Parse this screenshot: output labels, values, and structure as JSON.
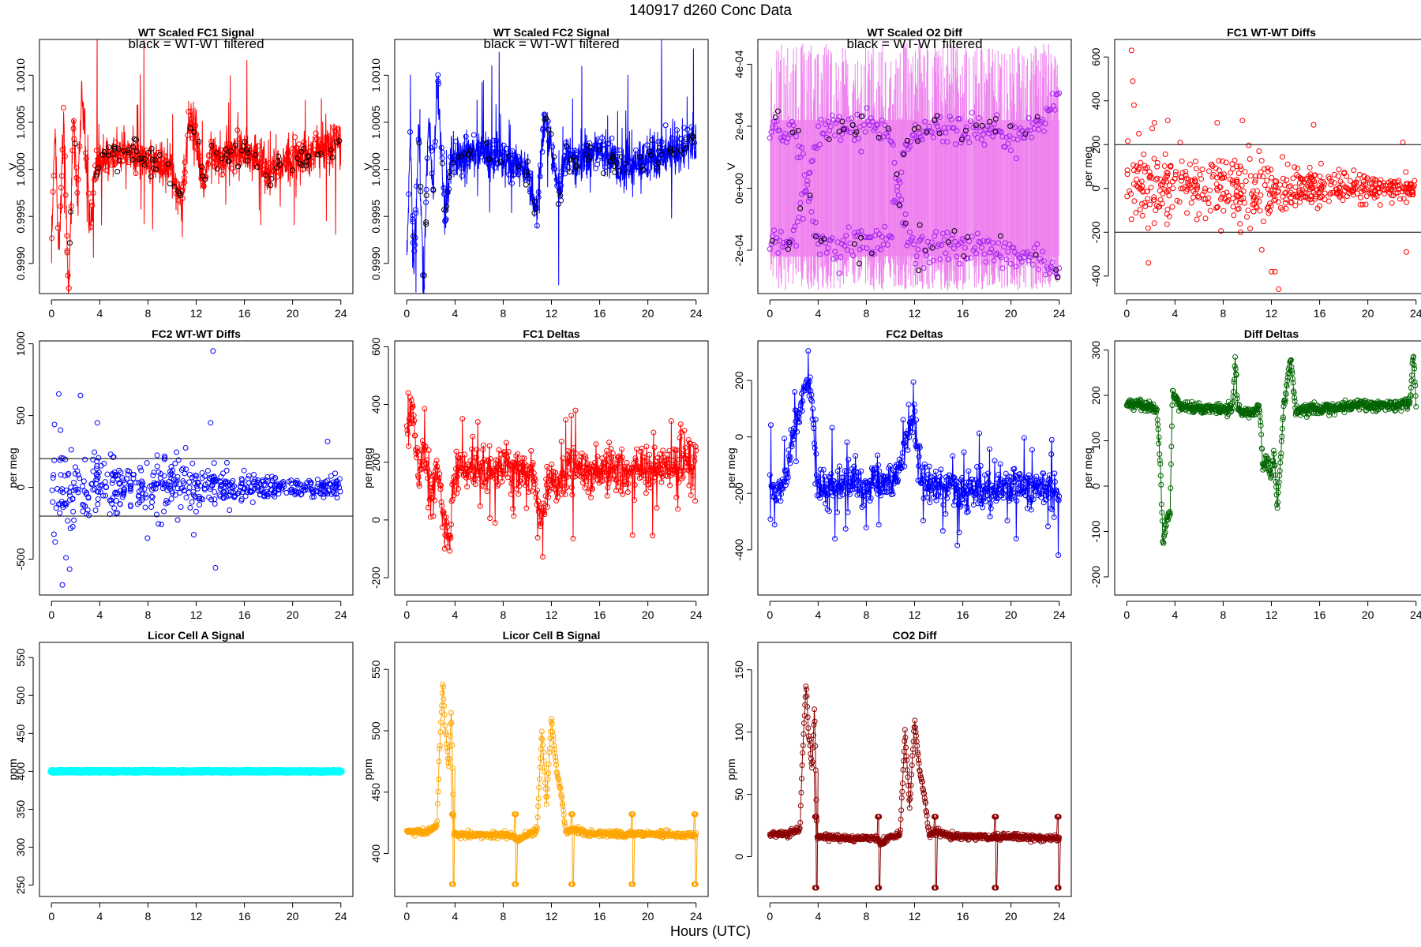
{
  "figure": {
    "title": "140917   d260   Conc Data",
    "xlabel": "Hours (UTC)",
    "annotation": "black = WT-WT filtered"
  },
  "colors": {
    "axis": "#000000",
    "black": "#000000",
    "red": "#ff0000",
    "blue": "#0000ff",
    "violet": "#ee82ee",
    "purple": "#a020f0",
    "green": "#006400",
    "cyan": "#00ffff",
    "orange": "#ffa500",
    "darkred": "#8b0000"
  },
  "chart_data": [
    {
      "id": "fc1-signal",
      "type": "line",
      "title": "WT Scaled FC1 Signal",
      "ylabel": "V",
      "ylim": [
        0.99868,
        1.00138
      ],
      "xlim": [
        -1,
        25
      ],
      "yticks": [
        0.999,
        0.9995,
        1.0,
        1.0005,
        1.001
      ],
      "ytick_labels": [
        "0.9990",
        "0.9995",
        "1.0000",
        "1.0005",
        "1.0010"
      ],
      "xticks": [
        0,
        4,
        8,
        12,
        16,
        20,
        24
      ],
      "note": true,
      "baseline": 1.0001,
      "noise": 0.00012,
      "line_color": "red",
      "point_color": "red",
      "filtered_color": "black",
      "series": [
        {
          "name": "WT-WT",
          "x": [
            0.0,
            0.3,
            0.6,
            1.0,
            1.4,
            1.8,
            2.2,
            2.5,
            2.8,
            3.2,
            3.6,
            4.0,
            6.0,
            8.0,
            10.0,
            10.8,
            11.4,
            12.0,
            12.6,
            13.2,
            14.0,
            16.0,
            18.0,
            20.0,
            22.0,
            24.0
          ],
          "y": [
            0.9992,
            1.0004,
            0.999,
            1.0006,
            0.9986,
            1.0005,
            0.9997,
            1.0009,
            1.0003,
            0.9993,
            1.0,
            1.0001,
            1.0002,
            1.0001,
            1.0,
            0.9996,
            1.0005,
            1.0004,
            0.9998,
            1.0002,
            1.0001,
            1.0002,
            1.0,
            1.0001,
            1.0002,
            1.0003
          ]
        }
      ]
    },
    {
      "id": "fc2-signal",
      "type": "line",
      "title": "WT Scaled FC2 Signal",
      "ylabel": "V",
      "ylim": [
        0.99868,
        1.00138
      ],
      "xlim": [
        -1,
        25
      ],
      "yticks": [
        0.999,
        0.9995,
        1.0,
        1.0005,
        1.001
      ],
      "ytick_labels": [
        "0.9990",
        "0.9995",
        "1.0000",
        "1.0005",
        "1.0010"
      ],
      "xticks": [
        0,
        4,
        8,
        12,
        16,
        20,
        24
      ],
      "note": true,
      "baseline": 1.0001,
      "noise": 0.00012,
      "line_color": "blue",
      "point_color": "blue",
      "filtered_color": "black",
      "series": [
        {
          "name": "WT-WT",
          "x": [
            0.0,
            0.3,
            0.6,
            1.0,
            1.4,
            1.8,
            2.2,
            2.5,
            2.8,
            3.2,
            3.6,
            4.0,
            6.0,
            8.0,
            10.0,
            10.8,
            11.4,
            12.0,
            12.6,
            13.2,
            14.0,
            16.0,
            18.0,
            20.0,
            22.0,
            24.0
          ],
          "y": [
            0.9991,
            1.0004,
            0.9989,
            1.0005,
            0.9986,
            1.0006,
            0.9998,
            1.001,
            1.0004,
            0.9994,
            1.0001,
            1.0001,
            1.0002,
            1.0001,
            1.0,
            0.9995,
            1.0005,
            1.0003,
            0.9997,
            1.0002,
            1.0001,
            1.0002,
            1.0,
            1.0001,
            1.0002,
            1.0003
          ]
        }
      ]
    },
    {
      "id": "o2-diff",
      "type": "line",
      "title": "WT Scaled O2 Diff",
      "ylabel": "V",
      "ylim": [
        -0.00034,
        0.00048
      ],
      "xlim": [
        -1,
        25
      ],
      "yticks": [
        -0.0002,
        0.0,
        0.0002,
        0.0004
      ],
      "ytick_labels": [
        "-2e-04",
        "0e+00",
        "2e-04",
        "4e-04"
      ],
      "xticks": [
        0,
        4,
        8,
        12,
        16,
        20,
        24
      ],
      "note": true,
      "line_color": "violet",
      "point_color": "purple",
      "filtered_color": "black",
      "band": [
        -0.00022,
        0.00022
      ],
      "series": [
        {
          "name": "upper",
          "x": [
            0,
            2,
            4,
            6,
            8,
            10,
            11,
            12,
            13,
            14,
            16,
            18,
            20,
            22,
            24
          ],
          "y": [
            0.00018,
            0.00019,
            -0.00017,
            -0.00019,
            -0.00018,
            -0.00017,
            0.0001,
            0.00019,
            0.00018,
            0.0002,
            0.00019,
            0.00018,
            0.00017,
            0.0002,
            0.0003
          ]
        },
        {
          "name": "lower",
          "x": [
            0,
            2,
            4,
            6,
            8,
            10,
            11,
            12,
            13,
            14,
            16,
            18,
            20,
            22,
            24
          ],
          "y": [
            -0.00018,
            -0.00017,
            0.00018,
            0.00019,
            0.0002,
            0.00019,
            -0.0001,
            -0.00019,
            -0.0002,
            -0.00019,
            -0.00018,
            -0.0002,
            -0.00021,
            -0.0002,
            -0.00028
          ]
        }
      ]
    },
    {
      "id": "fc1-diffs",
      "type": "scatter",
      "title": "FC1 WT-WT Diffs",
      "ylabel": "per meg",
      "ylim": [
        -480,
        680
      ],
      "xlim": [
        -1,
        25
      ],
      "yticks": [
        -400,
        -200,
        0,
        200,
        400,
        600
      ],
      "ytick_labels": [
        "-400",
        "-200",
        "0",
        "200",
        "400",
        "600"
      ],
      "xticks": [
        0,
        4,
        8,
        12,
        16,
        20,
        24
      ],
      "hlines": [
        200,
        -200
      ],
      "point_color": "red",
      "n": 560,
      "spread": [
        [
          0,
          180
        ],
        [
          4,
          110
        ],
        [
          10,
          130
        ],
        [
          14,
          90
        ],
        [
          18,
          60
        ],
        [
          24,
          45
        ]
      ],
      "series": [
        {
          "name": "outliers",
          "x": [
            0.4,
            0.5,
            0.6,
            1.0,
            1.8,
            2.3,
            3.4,
            7.5,
            9.6,
            11.2,
            12.0,
            12.3,
            12.6,
            15.5,
            22.9,
            23.2
          ],
          "y": [
            630,
            490,
            380,
            250,
            -340,
            300,
            310,
            300,
            310,
            -280,
            -380,
            -380,
            -460,
            290,
            210,
            -290
          ]
        }
      ]
    },
    {
      "id": "fc2-diffs",
      "type": "scatter",
      "title": "FC2 WT-WT Diffs",
      "ylabel": "per meg",
      "ylim": [
        -750,
        1020
      ],
      "xlim": [
        -1,
        25
      ],
      "yticks": [
        -500,
        0,
        500,
        1000
      ],
      "ytick_labels": [
        "-500",
        "0",
        "500",
        "1000"
      ],
      "xticks": [
        0,
        4,
        8,
        12,
        16,
        20,
        24
      ],
      "hlines": [
        200,
        -200
      ],
      "point_color": "blue",
      "n": 560,
      "spread": [
        [
          0,
          280
        ],
        [
          4,
          170
        ],
        [
          10,
          190
        ],
        [
          14,
          110
        ],
        [
          18,
          70
        ],
        [
          24,
          60
        ]
      ],
      "series": [
        {
          "name": "outliers",
          "x": [
            0.3,
            0.6,
            0.9,
            1.2,
            1.5,
            2.4,
            3.8,
            11.8,
            13.2,
            13.4,
            13.6,
            22.9
          ],
          "y": [
            -380,
            650,
            -680,
            -490,
            -570,
            640,
            450,
            -330,
            450,
            950,
            -560,
            320
          ]
        }
      ]
    },
    {
      "id": "fc1-deltas",
      "type": "line",
      "title": "FC1 Deltas",
      "ylabel": "per meg",
      "ylim": [
        -260,
        620
      ],
      "xlim": [
        -1,
        25
      ],
      "yticks": [
        -200,
        0,
        200,
        400,
        600
      ],
      "ytick_labels": [
        "-200",
        "0",
        "200",
        "400",
        "600"
      ],
      "xticks": [
        0,
        4,
        8,
        12,
        16,
        20,
        24
      ],
      "line_color": "red",
      "point_color": "red",
      "n": 620,
      "noise": 35,
      "spikes": 0.09,
      "spike_size": 130,
      "series": [
        {
          "name": "FC1",
          "x": [
            0.0,
            0.5,
            1.0,
            1.5,
            2.0,
            2.5,
            3.0,
            3.3,
            3.6,
            3.9,
            4.3,
            6.0,
            8.0,
            10.0,
            10.5,
            11.0,
            11.5,
            12.0,
            12.5,
            13.0,
            14.0,
            16.0,
            18.0,
            20.0,
            22.0,
            24.0
          ],
          "y": [
            300,
            380,
            160,
            250,
            90,
            200,
            20,
            -60,
            -90,
            160,
            180,
            180,
            175,
            170,
            140,
            10,
            40,
            150,
            100,
            160,
            175,
            170,
            165,
            175,
            185,
            200
          ]
        }
      ]
    },
    {
      "id": "fc2-deltas",
      "type": "line",
      "title": "FC2 Deltas",
      "ylabel": "per meg",
      "ylim": [
        -560,
        340
      ],
      "xlim": [
        -1,
        25
      ],
      "yticks": [
        -400,
        -200,
        0,
        200
      ],
      "ytick_labels": [
        "-400",
        "-200",
        "0",
        "200"
      ],
      "xticks": [
        0,
        4,
        8,
        12,
        16,
        20,
        24
      ],
      "line_color": "blue",
      "point_color": "blue",
      "n": 620,
      "noise": 30,
      "spikes": 0.09,
      "spike_size": 120,
      "series": [
        {
          "name": "FC2",
          "x": [
            0.0,
            0.5,
            1.0,
            1.5,
            2.0,
            2.5,
            3.0,
            3.5,
            3.9,
            4.3,
            6.0,
            8.0,
            10.0,
            10.5,
            11.0,
            11.5,
            12.0,
            12.5,
            13.0,
            14.0,
            16.0,
            18.0,
            20.0,
            22.0,
            24.0
          ],
          "y": [
            -150,
            -230,
            -180,
            -120,
            20,
            110,
            200,
            120,
            -150,
            -180,
            -170,
            -175,
            -160,
            -150,
            -60,
            30,
            80,
            -140,
            -170,
            -180,
            -185,
            -190,
            -180,
            -185,
            -200
          ]
        }
      ]
    },
    {
      "id": "diff-deltas",
      "type": "line",
      "title": "Diff Deltas",
      "ylabel": "per meg",
      "ylim": [
        -240,
        320
      ],
      "xlim": [
        -1,
        25
      ],
      "yticks": [
        -200,
        -100,
        0,
        100,
        200,
        300
      ],
      "ytick_labels": [
        "-200",
        "-100",
        "0",
        "100",
        "200",
        "300"
      ],
      "xticks": [
        0,
        4,
        8,
        12,
        16,
        20,
        24
      ],
      "line_color": "green",
      "point_color": "green",
      "n": 700,
      "noise": 6,
      "spikes": 0.0,
      "spike_size": 0,
      "series": [
        {
          "name": "diff",
          "x": [
            0.0,
            1.0,
            2.0,
            2.5,
            2.8,
            3.0,
            3.3,
            3.6,
            3.8,
            4.0,
            4.5,
            6.0,
            8.0,
            8.8,
            9.0,
            9.2,
            9.5,
            10.5,
            11.0,
            11.3,
            11.6,
            12.0,
            12.2,
            12.5,
            13.0,
            13.6,
            14.0,
            16.0,
            18.0,
            20.0,
            22.0,
            23.5,
            23.8,
            24.0
          ],
          "y": [
            182,
            178,
            175,
            170,
            40,
            -120,
            -80,
            -60,
            210,
            195,
            175,
            172,
            170,
            175,
            280,
            175,
            165,
            160,
            175,
            40,
            60,
            20,
            80,
            -50,
            165,
            285,
            165,
            170,
            175,
            180,
            178,
            185,
            300,
            170
          ]
        }
      ]
    },
    {
      "id": "licor-a",
      "type": "line",
      "title": "Licor Cell A Signal",
      "ylabel": "ppm",
      "ylim": [
        235,
        570
      ],
      "xlim": [
        -1,
        25
      ],
      "yticks": [
        250,
        300,
        350,
        400,
        450,
        500,
        550
      ],
      "ytick_labels": [
        "250",
        "300",
        "350",
        "400",
        "450",
        "500",
        "550"
      ],
      "xticks": [
        0,
        4,
        8,
        12,
        16,
        20,
        24
      ],
      "line_color": "cyan",
      "point_color": "cyan",
      "thick": true,
      "n": 600,
      "noise": 0.3,
      "spikes": 0,
      "spike_size": 0,
      "series": [
        {
          "name": "cellA",
          "x": [
            0,
            24
          ],
          "y": [
            400,
            400
          ]
        }
      ]
    },
    {
      "id": "licor-b",
      "type": "line",
      "title": "Licor Cell B Signal",
      "ylabel": "ppm",
      "ylim": [
        365,
        572
      ],
      "xlim": [
        -1,
        25
      ],
      "yticks": [
        400,
        450,
        500,
        550
      ],
      "ytick_labels": [
        "400",
        "450",
        "500",
        "550"
      ],
      "xticks": [
        0,
        4,
        8,
        12,
        16,
        20,
        24
      ],
      "line_color": "orange",
      "point_color": "orange",
      "n": 620,
      "noise": 1.2,
      "spikes": 0,
      "spike_size": 0,
      "series": [
        {
          "name": "cellB",
          "x": [
            0.0,
            1.5,
            2.5,
            2.7,
            3.0,
            3.2,
            3.5,
            3.7,
            3.9,
            4.2,
            6.0,
            8.0,
            8.8,
            9.2,
            10.0,
            10.8,
            11.2,
            11.6,
            12.0,
            12.4,
            12.8,
            13.2,
            14.0,
            15.0,
            18.0,
            20.0,
            22.0,
            24.0
          ],
          "y": [
            418,
            418,
            422,
            480,
            540,
            500,
            470,
            520,
            416,
            416,
            415,
            415,
            415,
            410,
            416,
            418,
            500,
            440,
            510,
            470,
            450,
            418,
            420,
            416,
            416,
            416,
            415,
            415
          ]
        }
      ],
      "events": {
        "x": [
          3.8,
          9.0,
          13.7,
          18.7,
          23.9
        ],
        "high": 432,
        "low": 375
      }
    },
    {
      "id": "co2-diff",
      "type": "line",
      "title": "CO2 Diff",
      "ylabel": "ppm",
      "ylim": [
        -32,
        172
      ],
      "xlim": [
        -1,
        25
      ],
      "yticks": [
        0,
        50,
        100,
        150
      ],
      "ytick_labels": [
        "0",
        "50",
        "100",
        "150"
      ],
      "xticks": [
        0,
        4,
        8,
        12,
        16,
        20,
        24
      ],
      "line_color": "darkred",
      "point_color": "darkred",
      "n": 620,
      "noise": 1.2,
      "spikes": 0,
      "spike_size": 0,
      "series": [
        {
          "name": "co2",
          "x": [
            0.0,
            1.5,
            2.5,
            2.7,
            3.0,
            3.2,
            3.5,
            3.7,
            3.9,
            4.2,
            6.0,
            8.0,
            8.8,
            9.2,
            10.0,
            10.8,
            11.2,
            11.6,
            12.0,
            12.4,
            12.8,
            13.2,
            14.0,
            15.0,
            18.0,
            20.0,
            22.0,
            24.0
          ],
          "y": [
            18,
            18,
            22,
            80,
            140,
            100,
            70,
            120,
            16,
            16,
            15,
            15,
            15,
            10,
            16,
            18,
            100,
            40,
            110,
            70,
            50,
            18,
            20,
            16,
            16,
            16,
            15,
            15
          ]
        }
      ],
      "events": {
        "x": [
          3.8,
          9.0,
          13.7,
          18.7,
          23.9
        ],
        "high": 32,
        "low": -25
      }
    }
  ]
}
